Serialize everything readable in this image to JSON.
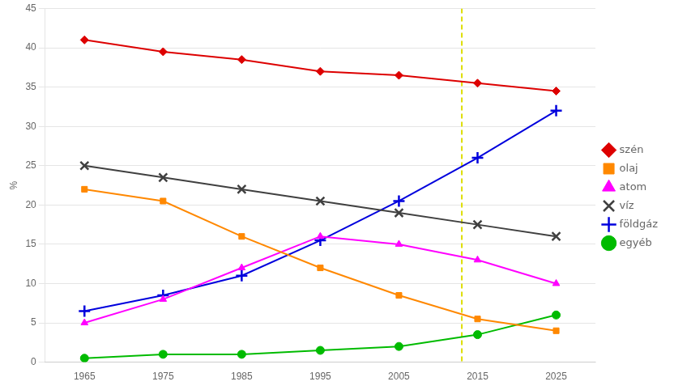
{
  "chart_data": {
    "type": "line",
    "y_label": "%",
    "x": [
      1965,
      1975,
      1985,
      1995,
      2005,
      2015,
      2025
    ],
    "series": [
      {
        "name": "szén",
        "color": "#dd0000",
        "marker": "diamond",
        "line_style": "solid",
        "values": [
          41,
          39.5,
          38.5,
          37,
          36.5,
          35.5,
          34.5
        ]
      },
      {
        "name": "olaj",
        "color": "#ff8800",
        "marker": "square",
        "line_style": "solid",
        "values": [
          22,
          20.5,
          16,
          12,
          8.5,
          5.5,
          4
        ]
      },
      {
        "name": "atom",
        "color": "#ff00ff",
        "marker": "triangle",
        "line_style": "solid",
        "values": [
          5,
          8,
          12,
          16,
          15,
          13,
          10
        ]
      },
      {
        "name": "víz",
        "color": "#404040",
        "marker": "x",
        "line_style": "solid",
        "values": [
          25,
          23.5,
          22,
          20.5,
          19,
          17.5,
          16
        ]
      },
      {
        "name": "földgáz",
        "color": "#0000dd",
        "marker": "plus",
        "line_style": "solid",
        "values": [
          6.5,
          8.5,
          11,
          15.5,
          20.5,
          26,
          32
        ]
      },
      {
        "name": "egyéb",
        "color": "#00bb00",
        "marker": "circle",
        "line_style": "solid",
        "values": [
          0.5,
          1,
          1,
          1.5,
          2,
          3.5,
          6
        ]
      }
    ],
    "xlim": [
      1960,
      2030
    ],
    "xticks": [
      1965,
      1975,
      1985,
      1995,
      2005,
      2015,
      2025
    ],
    "ylim": [
      0,
      45
    ],
    "yticks": [
      0,
      5,
      10,
      15,
      20,
      25,
      30,
      35,
      40,
      45
    ],
    "grid": "y",
    "legend": "right",
    "annotations": [
      {
        "type": "vline",
        "x": 2013,
        "color": "#dddd00",
        "line_style": "dashed"
      }
    ]
  }
}
